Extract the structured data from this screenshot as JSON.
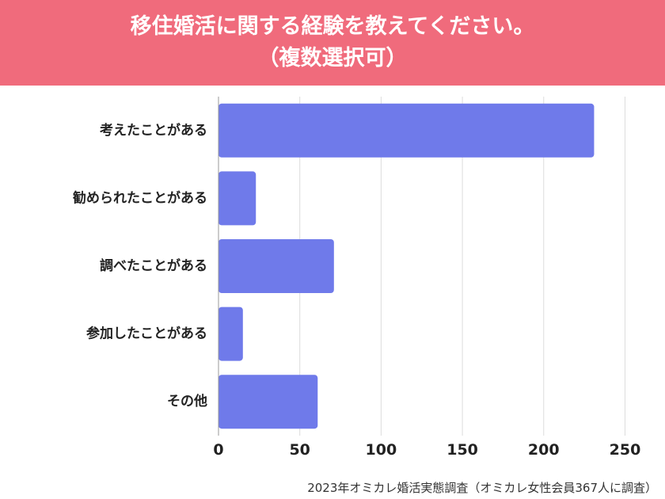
{
  "header": {
    "title_line1": "移住婚活に関する経験を教えてください。",
    "title_line2": "（複数選択可）"
  },
  "chart_data": {
    "type": "bar",
    "orientation": "horizontal",
    "categories": [
      "考えたことがある",
      "勧められたことがある",
      "調べたことがある",
      "参加したことがある",
      "その他"
    ],
    "values": [
      231,
      23,
      71,
      15,
      61
    ],
    "xlim": [
      0,
      260
    ],
    "xticks": [
      0,
      50,
      100,
      150,
      200,
      250
    ],
    "xlabel": "",
    "ylabel": "",
    "grid": true,
    "bar_color": "#6f7aea"
  },
  "footer": {
    "source": "2023年オミカレ婚活実態調査（オミカレ女性会員367人に調査）"
  }
}
